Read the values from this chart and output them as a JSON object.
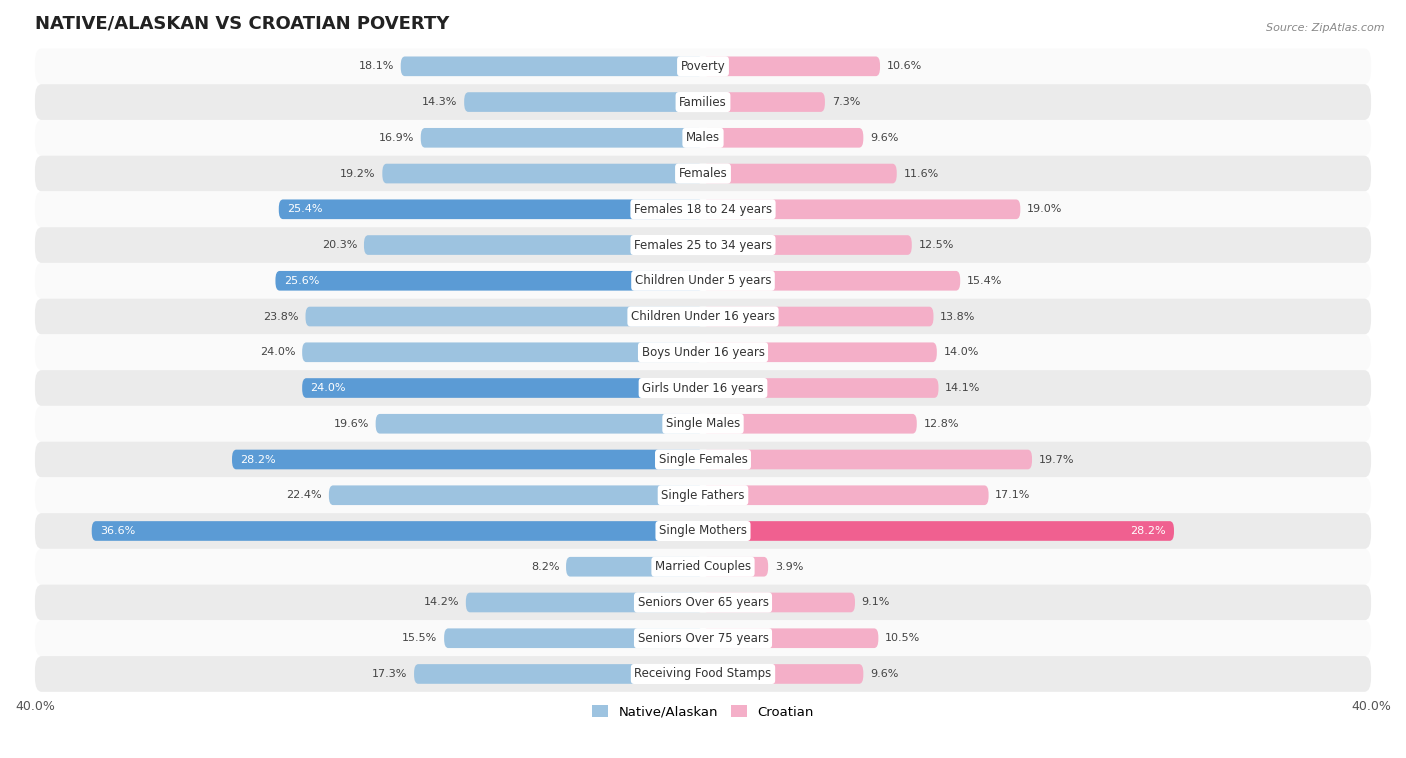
{
  "title": "NATIVE/ALASKAN VS CROATIAN POVERTY",
  "source": "Source: ZipAtlas.com",
  "categories": [
    "Poverty",
    "Families",
    "Males",
    "Females",
    "Females 18 to 24 years",
    "Females 25 to 34 years",
    "Children Under 5 years",
    "Children Under 16 years",
    "Boys Under 16 years",
    "Girls Under 16 years",
    "Single Males",
    "Single Females",
    "Single Fathers",
    "Single Mothers",
    "Married Couples",
    "Seniors Over 65 years",
    "Seniors Over 75 years",
    "Receiving Food Stamps"
  ],
  "native_values": [
    18.1,
    14.3,
    16.9,
    19.2,
    25.4,
    20.3,
    25.6,
    23.8,
    24.0,
    24.0,
    19.6,
    28.2,
    22.4,
    36.6,
    8.2,
    14.2,
    15.5,
    17.3
  ],
  "croatian_values": [
    10.6,
    7.3,
    9.6,
    11.6,
    19.0,
    12.5,
    15.4,
    13.8,
    14.0,
    14.1,
    12.8,
    19.7,
    17.1,
    28.2,
    3.9,
    9.1,
    10.5,
    9.6
  ],
  "native_color_normal": "#9dc3e0",
  "native_color_highlight": "#5b9bd5",
  "croatian_color_normal": "#f4afc8",
  "croatian_color_highlight": "#f06090",
  "row_color_light": "#fafafa",
  "row_color_dark": "#ebebeb",
  "xlim": 40.0,
  "bar_height": 0.55,
  "label_fontsize": 8.5,
  "title_fontsize": 13,
  "value_fontsize": 8.0,
  "native_highlight_indices": [
    4,
    6,
    9,
    11,
    13
  ],
  "croatian_highlight_indices": [
    13
  ]
}
